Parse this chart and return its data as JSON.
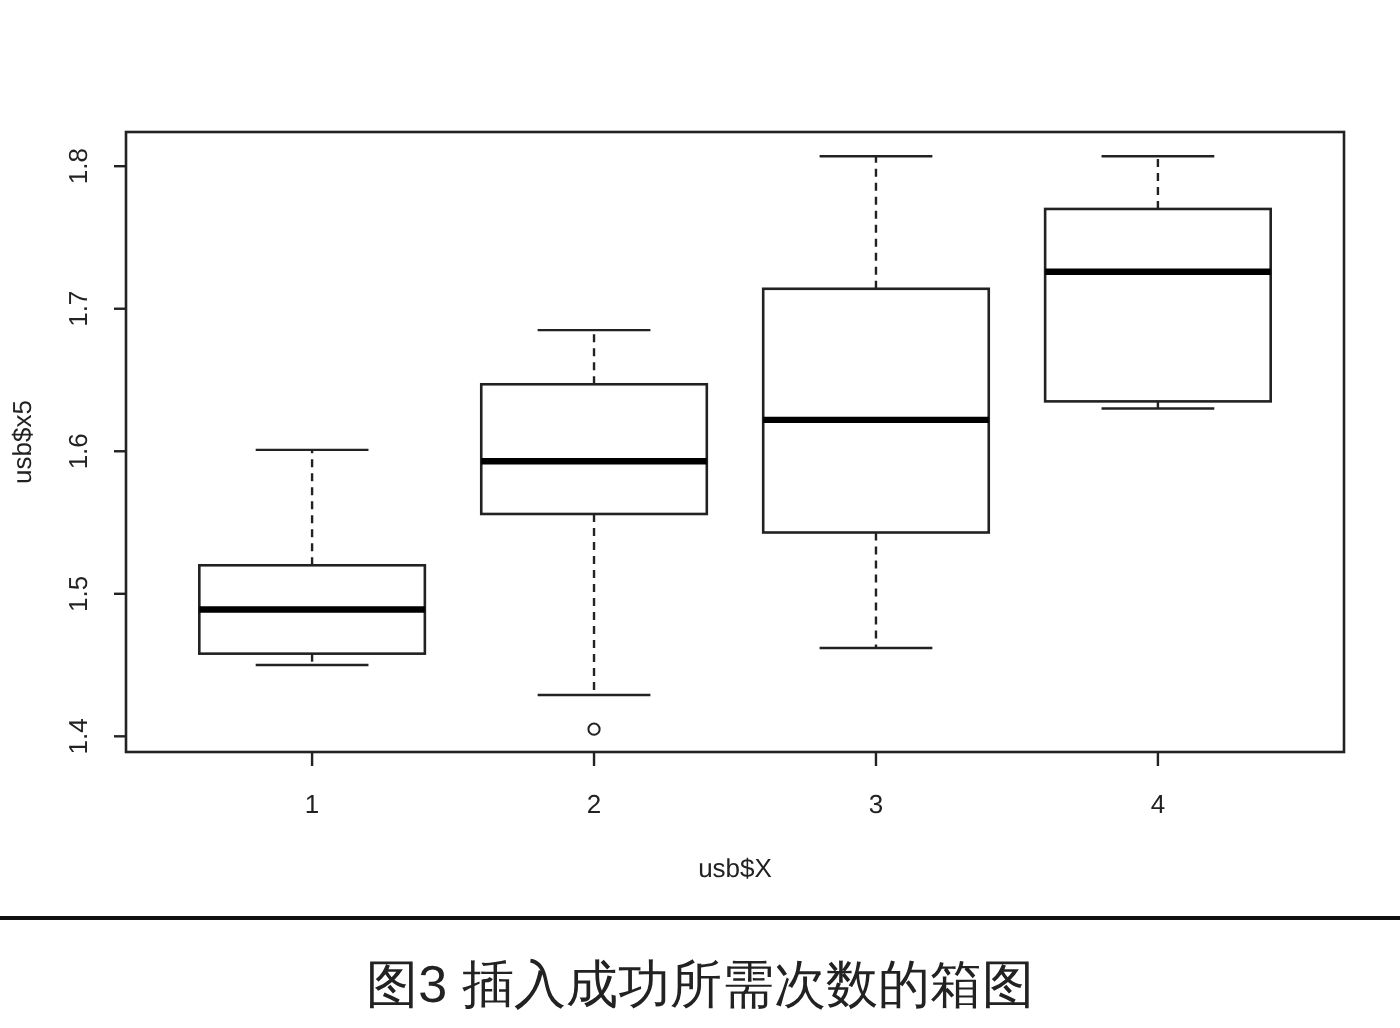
{
  "chart_data": {
    "type": "box",
    "categories": [
      "1",
      "2",
      "3",
      "4"
    ],
    "boxes": [
      {
        "low": 1.45,
        "q1": 1.458,
        "median": 1.489,
        "q3": 1.52,
        "high": 1.601
      },
      {
        "low": 1.429,
        "q1": 1.556,
        "median": 1.593,
        "q3": 1.647,
        "high": 1.685,
        "outliers": [
          1.405
        ]
      },
      {
        "low": 1.462,
        "q1": 1.543,
        "median": 1.622,
        "q3": 1.714,
        "high": 1.807
      },
      {
        "low": 1.63,
        "q1": 1.635,
        "median": 1.726,
        "q3": 1.77,
        "high": 1.807
      }
    ],
    "xlabel": "usb$X",
    "ylabel": "usb$x5",
    "ylim": [
      1.389,
      1.824
    ],
    "yticks": [
      1.4,
      1.5,
      1.6,
      1.7,
      1.8
    ],
    "annotations": [
      "图3 插入成功所需次数的箱图"
    ]
  }
}
